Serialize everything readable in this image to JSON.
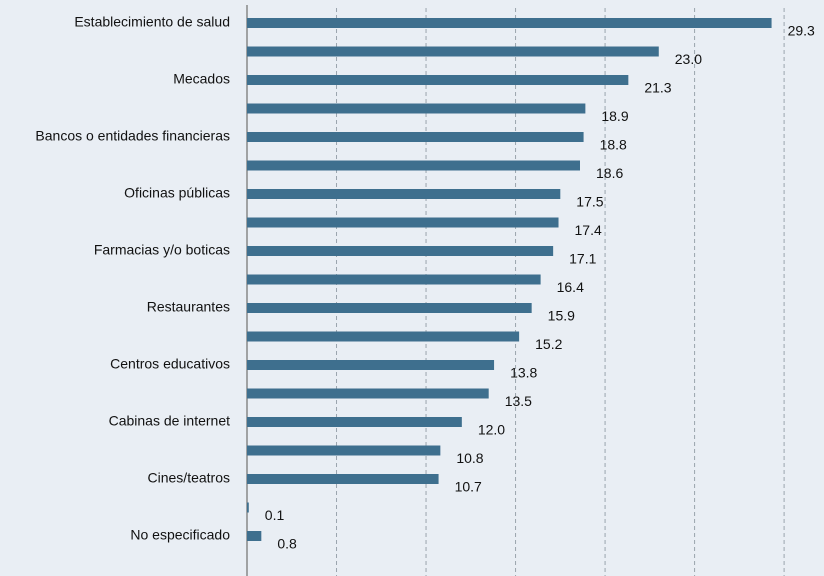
{
  "chart_data": {
    "type": "barh",
    "categories": [
      "Establecimiento de salud",
      null,
      "Mecados",
      null,
      "Bancos o entidades financieras",
      null,
      "Oficinas públicas",
      null,
      "Farmacias y/o boticas",
      null,
      "Restaurantes",
      null,
      "Centros educativos",
      null,
      "Cabinas de internet",
      null,
      "Cines/teatros",
      null,
      "No especificado"
    ],
    "values": [
      29.3,
      23.0,
      21.3,
      18.9,
      18.8,
      18.6,
      17.5,
      17.4,
      17.1,
      16.4,
      15.9,
      15.2,
      13.8,
      13.5,
      12.0,
      10.8,
      10.7,
      0.1,
      0.8
    ],
    "value_labels": [
      "29.3",
      "23.0",
      "21.3",
      "18.9",
      "18.8",
      "18.6",
      "17.5",
      "17.4",
      "17.1",
      "16.4",
      "15.9",
      "15.2",
      "13.8",
      "13.5",
      "12.0",
      "10.8",
      "10.7",
      "0.1",
      "0.8"
    ],
    "color": "#3e6f8e",
    "xlim": [
      0,
      31
    ],
    "xticks": [
      5,
      10,
      15,
      20,
      25,
      30
    ],
    "grid": true
  }
}
